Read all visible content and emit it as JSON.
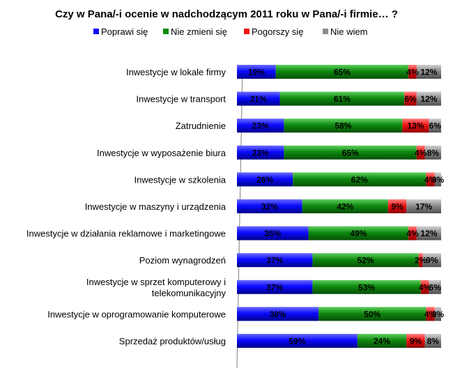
{
  "chart_data": {
    "type": "bar",
    "orientation": "horizontal",
    "stacked": "percent",
    "title": "Czy w Pana/-i ocenie w nadchodzącym 2011 roku w Pana/-i firmie… ?",
    "legend_position": "top",
    "categories": [
      [
        "Inwestycje w lokale firmy"
      ],
      [
        "Inwestycje w transport"
      ],
      [
        "Zatrudnienie"
      ],
      [
        "Inwestycje w wyposażenie biura"
      ],
      [
        "Inwestycje w szkolenia"
      ],
      [
        "Inwestycje w maszyny i urządzenia"
      ],
      [
        "Inwestycje w działania reklamowe i marketingowe"
      ],
      [
        "Poziom wynagrodzeń"
      ],
      [
        "Inwestycje w sprzet komputerowy i",
        "telekomunikacyjny"
      ],
      [
        "Inwestycje w oprogramowanie komputerowe"
      ],
      [
        "Sprzedaż produktów/usług"
      ]
    ],
    "series": [
      {
        "name": "Poprawi się",
        "color": "#0b0bff",
        "values": [
          19,
          21,
          23,
          23,
          26,
          32,
          35,
          37,
          37,
          38,
          59
        ]
      },
      {
        "name": "Nie zmieni się",
        "color": "#0f8a0f",
        "values": [
          65,
          61,
          58,
          65,
          62,
          42,
          49,
          52,
          53,
          50,
          24
        ]
      },
      {
        "name": "Pogorszy się",
        "color": "#f21313",
        "values": [
          4,
          6,
          13,
          4,
          4,
          9,
          4,
          2,
          4,
          4,
          9
        ]
      },
      {
        "name": "Nie wiem",
        "color": "#8c8c8c",
        "values": [
          12,
          12,
          6,
          8,
          3,
          17,
          12,
          9,
          6,
          3,
          8
        ]
      }
    ],
    "value_suffix": "%"
  }
}
